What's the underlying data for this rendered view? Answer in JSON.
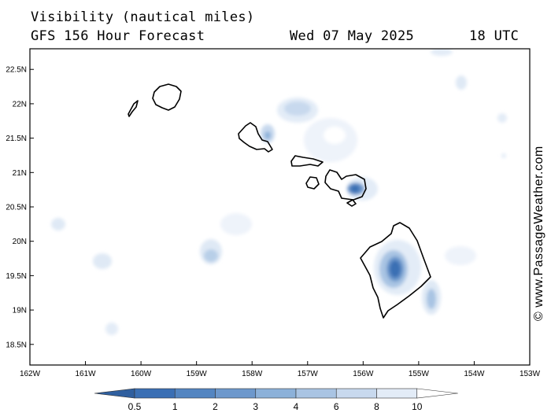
{
  "header": {
    "title": "Visibility (nautical miles)",
    "model": "GFS 156 Hour Forecast",
    "date": "Wed 07 May 2025",
    "time": "18 UTC"
  },
  "credit": "© www.PassageWeather.com",
  "map": {
    "lon_range": [
      -162,
      -153
    ],
    "lat_range": [
      18.2,
      22.8
    ],
    "lon_ticks": [
      "162W",
      "161W",
      "160W",
      "159W",
      "158W",
      "157W",
      "156W",
      "155W",
      "154W",
      "153W"
    ],
    "lat_ticks": [
      "18.5N",
      "19N",
      "19.5N",
      "20N",
      "20.5N",
      "21N",
      "21.5N",
      "22N",
      "22.5N"
    ],
    "grid": false
  },
  "colorbar": {
    "labels": [
      "0.5",
      "1",
      "2",
      "3",
      "4",
      "6",
      "8",
      "10"
    ],
    "colors": [
      "#3a6fb4",
      "#5385c1",
      "#6d98cc",
      "#8cb1d9",
      "#a9c4e3",
      "#c8d9ee",
      "#e3ecf7",
      "#ffffff"
    ]
  },
  "islands": [
    "Niihau",
    "Kauai",
    "Oahu",
    "Molokai",
    "Lanai",
    "Maui",
    "Kahoolawe",
    "Hawaii"
  ]
}
